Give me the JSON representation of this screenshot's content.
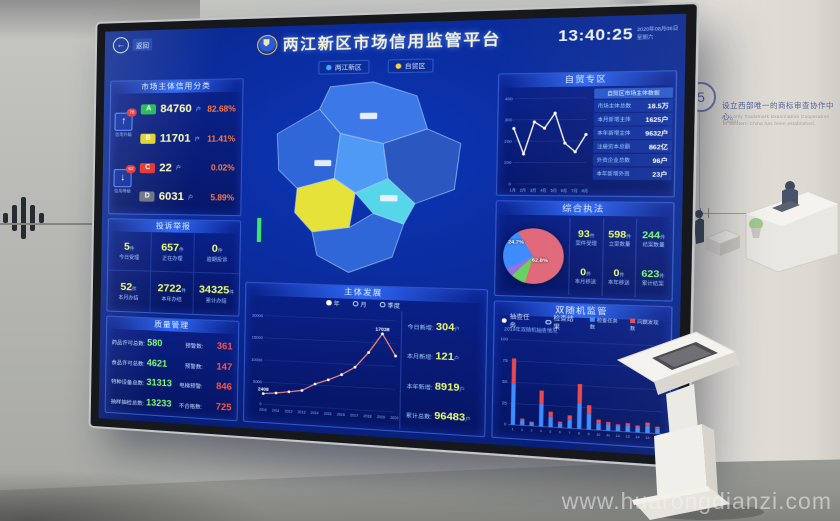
{
  "environment": {
    "wall_note": {
      "number": "5",
      "zh": "设立西部唯一的商标审查协作中心。",
      "en_line1": "The only Trademark Examination Cooperation Center",
      "en_line2": "in Western China has been established."
    },
    "watermark": "www.huarongdianzi.com"
  },
  "screen": {
    "back_label": "返回",
    "header": {
      "title": "两江新区市场信用监管平台",
      "time": "13:40:25",
      "date": "2020年08月08日",
      "weekday": "星期六"
    },
    "tabs": [
      {
        "label": "两江新区",
        "color": "#3fa8ff"
      },
      {
        "label": "自贸区",
        "color": "#ffd23f"
      }
    ],
    "credit_panel": {
      "title": "市场主体信用分类",
      "movers": [
        {
          "label": "信用升级",
          "badge": "78",
          "arrow": "↑"
        },
        {
          "label": "信用降级",
          "badge": "63",
          "arrow": "↓"
        }
      ],
      "rows": [
        {
          "grade": "A",
          "color": "#1fb84e",
          "count": "84760",
          "unit": "户",
          "percent": "82.68%"
        },
        {
          "grade": "B",
          "color": "#e3d227",
          "count": "11701",
          "unit": "户",
          "percent": "11.41%"
        },
        {
          "grade": "C",
          "color": "#e23128",
          "count": "22",
          "unit": "户",
          "percent": "0.02%"
        },
        {
          "grade": "D",
          "color": "#6b7280",
          "count": "6031",
          "unit": "户",
          "percent": "5.89%"
        }
      ]
    },
    "complaints_panel": {
      "title": "投诉举报",
      "stats": [
        {
          "value": "5",
          "unit": "件",
          "label": "今日受理"
        },
        {
          "value": "657",
          "unit": "件",
          "label": "正在办理"
        },
        {
          "value": "0",
          "unit": "件",
          "label": "逾期投诉"
        },
        {
          "value": "52",
          "unit": "件",
          "label": "本月办结"
        },
        {
          "value": "2722",
          "unit": "件",
          "label": "本年办结"
        },
        {
          "value": "34325",
          "unit": "件",
          "label": "累计办结"
        }
      ]
    },
    "quality_panel": {
      "title": "质量管理",
      "rows": [
        {
          "left_label": "药品许可总数:",
          "left_value": "580",
          "right_label": "预警数:",
          "right_value": "361"
        },
        {
          "left_label": "食品许可总数:",
          "left_value": "4621",
          "right_label": "预警数:",
          "right_value": "147"
        },
        {
          "left_label": "特种设备总数:",
          "left_value": "31313",
          "right_label": "电梯预警:",
          "right_value": "846"
        },
        {
          "left_label": "抽样抽检总数:",
          "left_value": "13233",
          "right_label": "不合格数:",
          "right_value": "725"
        }
      ]
    },
    "development_panel": {
      "title": "主体发展",
      "stats": [
        {
          "label": "今日新增:",
          "value": "304",
          "unit": "户"
        },
        {
          "label": "本月新增:",
          "value": "121",
          "unit": "户"
        },
        {
          "label": "本年新增:",
          "value": "8919",
          "unit": "户"
        },
        {
          "label": "累计总数:",
          "value": "96483",
          "unit": "户"
        }
      ]
    },
    "fta_panel": {
      "title": "自贸专区",
      "list_header": "自贸区市场主体数据",
      "list": [
        {
          "label": "市场主体总数",
          "value": "18.5万"
        },
        {
          "label": "本月新增主体",
          "value": "1625户"
        },
        {
          "label": "本年新增主体",
          "value": "9632户"
        },
        {
          "label": "注册资本总额",
          "value": "862亿"
        },
        {
          "label": "外资企业总数",
          "value": "96户"
        },
        {
          "label": "本年新增外资",
          "value": "23户"
        }
      ]
    },
    "enforcement_panel": {
      "title": "综合执法",
      "stats": [
        {
          "value": "93",
          "unit": "件",
          "label": "案件受理"
        },
        {
          "value": "598",
          "unit": "件",
          "label": "立案数量"
        },
        {
          "value": "244",
          "unit": "件",
          "label": "结案数量"
        },
        {
          "value": "0",
          "unit": "件",
          "label": "本月移送"
        },
        {
          "value": "0",
          "unit": "件",
          "label": "本年移送"
        },
        {
          "value": "623",
          "unit": "件",
          "label": "累计结案"
        }
      ]
    },
    "random_panel": {
      "title": "双随机监管",
      "options": [
        "抽查任务",
        "检查结果"
      ],
      "selected_option": "抽查任务",
      "note": "2019年双随机抽查情况",
      "legend": [
        {
          "label": "检查任务数",
          "color": "#3f8cff"
        },
        {
          "label": "问题发现数",
          "color": "#e8494f"
        }
      ]
    }
  },
  "chart_data": [
    {
      "id": "subject-development",
      "type": "line",
      "title": "主体发展",
      "x": [
        "2010",
        "2011",
        "2012",
        "2013",
        "2014",
        "2015",
        "2016",
        "2017",
        "2018",
        "2019",
        "2020"
      ],
      "values": [
        2408,
        2700,
        3150,
        3600,
        5200,
        6300,
        7600,
        9400,
        12800,
        17038,
        12300
      ],
      "ylim": [
        0,
        20000
      ],
      "yticks": [
        0,
        5000,
        10000,
        15000,
        20000
      ],
      "color": "#ff8f7c",
      "point_labels": [
        {
          "index": 0,
          "text": "2408"
        },
        {
          "index": 9,
          "text": "17038"
        }
      ],
      "legend": [
        "年",
        "月",
        "季度"
      ],
      "legend_selected": "年"
    },
    {
      "id": "fta-trend",
      "type": "line",
      "title": "自贸专区",
      "x": [
        "1月",
        "2月",
        "3月",
        "4月",
        "5月",
        "6月",
        "7月",
        "8月"
      ],
      "values": [
        260,
        140,
        290,
        260,
        330,
        190,
        150,
        230
      ],
      "ylim": [
        0,
        400
      ],
      "yticks": [
        0,
        100,
        200,
        300,
        400
      ],
      "color": "#ffffff"
    },
    {
      "id": "case-distribution",
      "type": "pie",
      "title": "综合执法",
      "slices": [
        {
          "label": "投诉",
          "value": 24.7,
          "color": "#3f8cff"
        },
        {
          "label": "举报",
          "value": 62.8,
          "color": "#e0697a"
        },
        {
          "label": "咨询",
          "value": 8.0,
          "color": "#69d25f"
        },
        {
          "label": "其他",
          "value": 4.5,
          "color": "#9a6fe0"
        }
      ],
      "shown_labels": [
        "24.7%",
        "62.8%"
      ]
    },
    {
      "id": "random-inspection",
      "type": "bar",
      "stacked": true,
      "title": "双随机监管",
      "categories": [
        "1",
        "2",
        "3",
        "4",
        "5",
        "6",
        "7",
        "8",
        "9",
        "10",
        "11",
        "12",
        "13",
        "14",
        "15",
        "16"
      ],
      "series": [
        {
          "name": "检查任务数",
          "color": "#3f8cff",
          "values": [
            48,
            6,
            4,
            26,
            12,
            5,
            10,
            30,
            18,
            8,
            7,
            6,
            7,
            6,
            8,
            6
          ]
        },
        {
          "name": "问题发现数",
          "color": "#e8494f",
          "values": [
            30,
            2,
            1,
            16,
            6,
            2,
            5,
            22,
            10,
            4,
            3,
            2,
            3,
            2,
            4,
            2
          ]
        }
      ],
      "ylim": [
        0,
        100
      ],
      "yticks": [
        0,
        25,
        50,
        75,
        100
      ]
    }
  ]
}
